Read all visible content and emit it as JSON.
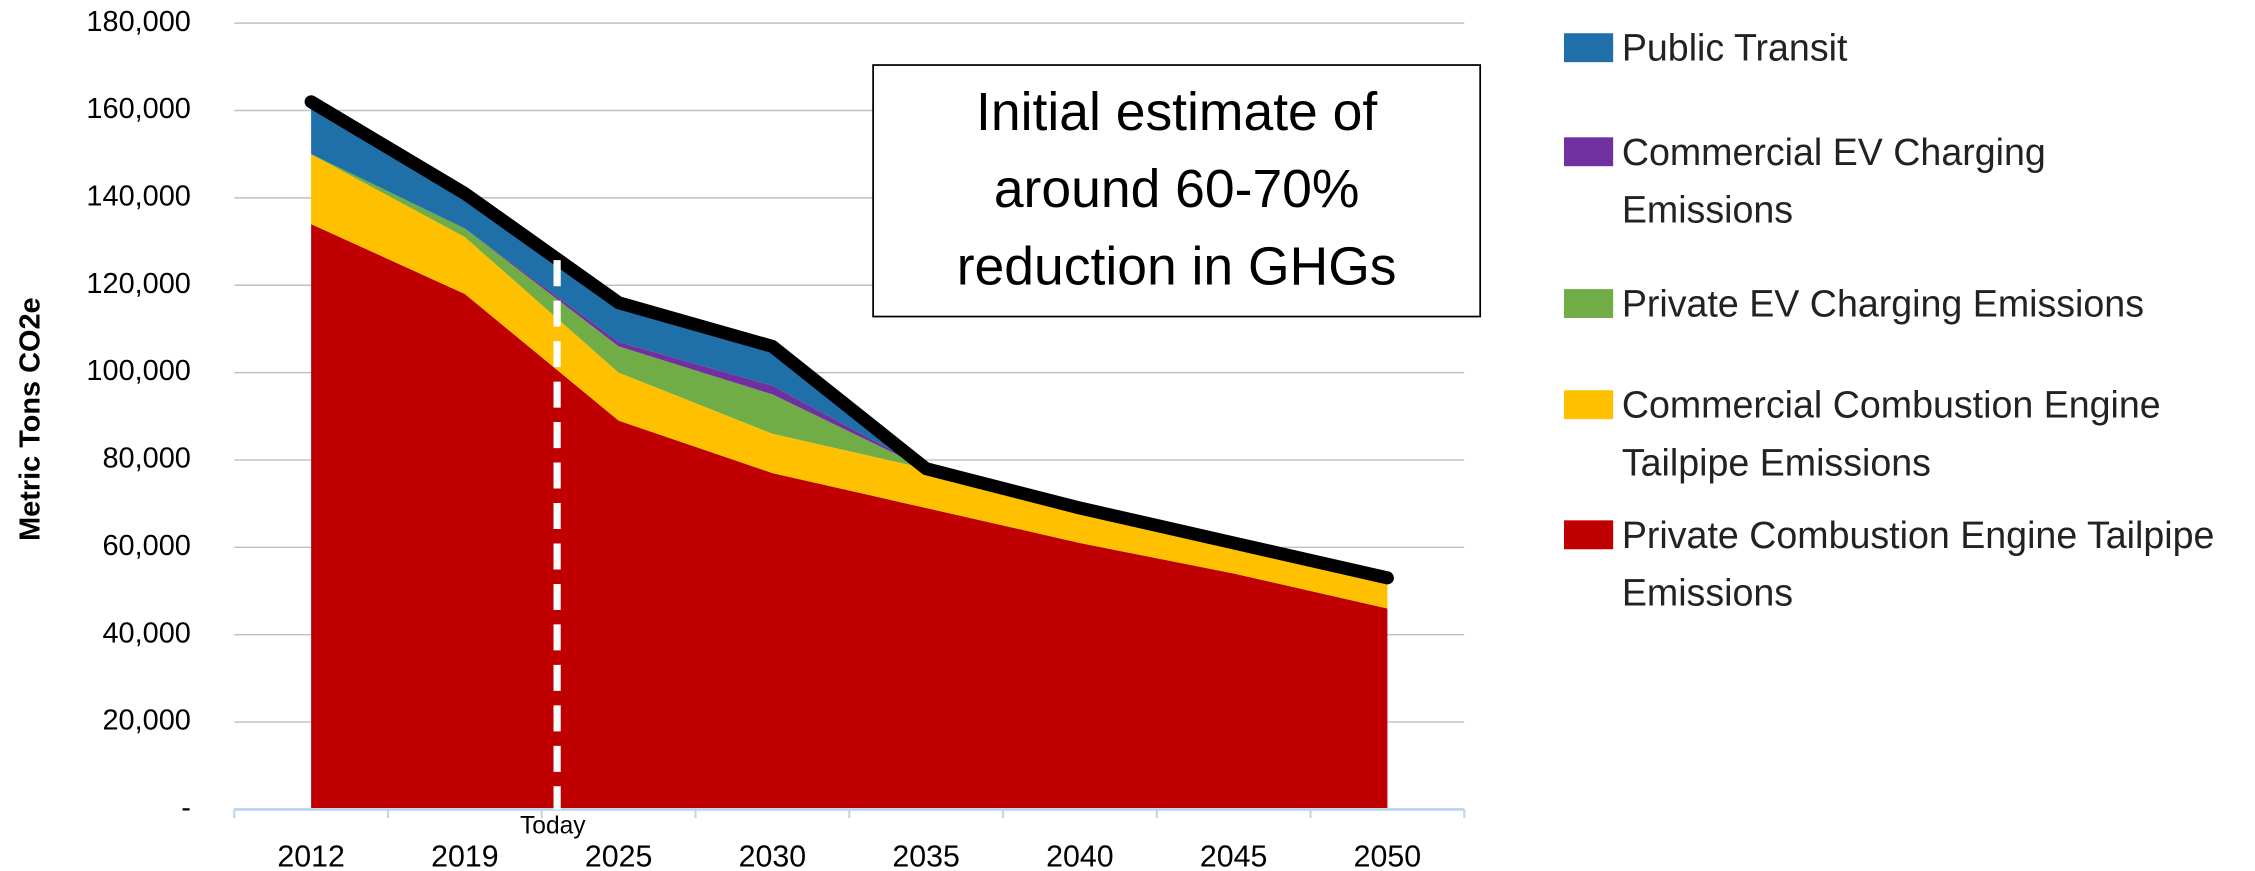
{
  "chart_data": {
    "type": "stacked_area",
    "y_label": "Metric Tons CO2e",
    "categories": [
      "2012",
      "2019",
      "2025",
      "2030",
      "2035",
      "2040",
      "2045",
      "2050"
    ],
    "series": [
      {
        "name": "Private Combustion Engine Tailpipe Emissions",
        "color": "#c00000",
        "values": [
          134000,
          118000,
          89000,
          77000,
          69000,
          61000,
          54000,
          46000
        ]
      },
      {
        "name": "Commercial Combustion Engine Tailpipe Emissions",
        "color": "#ffc000",
        "values": [
          16000,
          13000,
          11000,
          9000,
          9000,
          8000,
          7000,
          7000
        ]
      },
      {
        "name": "Private EV Charging Emissions",
        "color": "#70ad47",
        "values": [
          0,
          2000,
          6000,
          9000,
          0,
          0,
          0,
          0
        ]
      },
      {
        "name": "Commercial EV Charging Emissions",
        "color": "#7030a0",
        "values": [
          0,
          0,
          1000,
          2000,
          0,
          0,
          0,
          0
        ]
      },
      {
        "name": "Public Transit",
        "color": "#1f6fa8",
        "values": [
          12000,
          8000,
          9000,
          9000,
          0,
          0,
          0,
          0
        ]
      }
    ],
    "ylim": [
      0,
      180000
    ],
    "yticks": [
      {
        "value": 0,
        "label": "-"
      },
      {
        "value": 20000,
        "label": "20,000"
      },
      {
        "value": 40000,
        "label": "40,000"
      },
      {
        "value": 60000,
        "label": "60,000"
      },
      {
        "value": 80000,
        "label": "80,000"
      },
      {
        "value": 100000,
        "label": "100,000"
      },
      {
        "value": 120000,
        "label": "120,000"
      },
      {
        "value": 140000,
        "label": "140,000"
      },
      {
        "value": 160000,
        "label": "160,000"
      },
      {
        "value": 180000,
        "label": "180,000"
      }
    ],
    "grid": true,
    "marker_label": "Today",
    "annotation": [
      "Initial estimate of",
      "around 60-70%",
      "reduction in GHGs"
    ]
  }
}
